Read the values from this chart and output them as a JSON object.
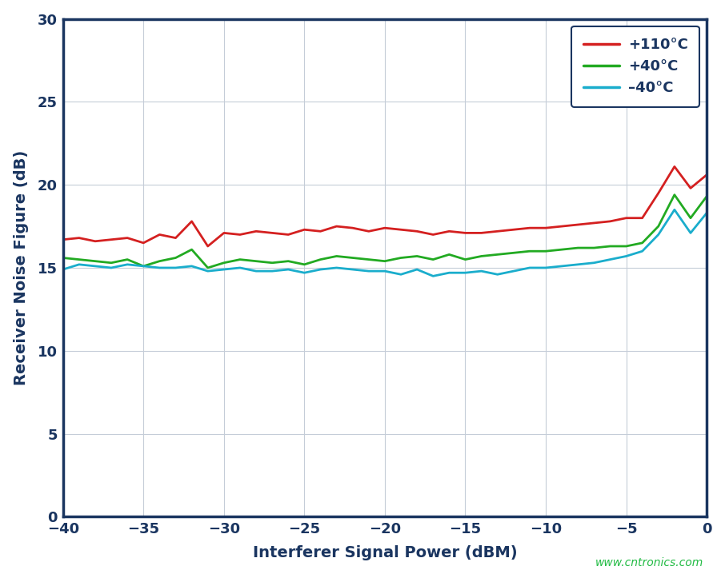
{
  "xlabel": "Interferer Signal Power (dBM)",
  "ylabel": "Receiver Noise Figure (dB)",
  "xlim": [
    -40,
    0
  ],
  "ylim": [
    0,
    30
  ],
  "xticks": [
    -40,
    -35,
    -30,
    -25,
    -20,
    -15,
    -10,
    -5,
    0
  ],
  "yticks": [
    0,
    5,
    10,
    15,
    20,
    25,
    30
  ],
  "background_color": "#ffffff",
  "plot_bg_color": "#ffffff",
  "grid_color": "#c5cdd8",
  "axis_color": "#1a3560",
  "label_color": "#1a3560",
  "tick_labelsize": 13,
  "axis_labelsize": 14,
  "watermark": "www.cntronics.com",
  "watermark_color": "#22bb44",
  "series": [
    {
      "label": "+110°C",
      "color": "#d42020",
      "linewidth": 2.0,
      "x": [
        -40,
        -39,
        -38,
        -37,
        -36,
        -35,
        -34,
        -33,
        -32,
        -31,
        -30,
        -29,
        -28,
        -27,
        -26,
        -25,
        -24,
        -23,
        -22,
        -21,
        -20,
        -19,
        -18,
        -17,
        -16,
        -15,
        -14,
        -13,
        -12,
        -11,
        -10,
        -9,
        -8,
        -7,
        -6,
        -5,
        -4,
        -3,
        -2,
        -1,
        0
      ],
      "y": [
        16.7,
        16.8,
        16.6,
        16.7,
        16.8,
        16.5,
        17.0,
        16.8,
        17.8,
        16.3,
        17.1,
        17.0,
        17.2,
        17.1,
        17.0,
        17.3,
        17.2,
        17.5,
        17.4,
        17.2,
        17.4,
        17.3,
        17.2,
        17.0,
        17.2,
        17.1,
        17.1,
        17.2,
        17.3,
        17.4,
        17.4,
        17.5,
        17.6,
        17.7,
        17.8,
        18.0,
        18.0,
        19.5,
        21.1,
        19.8,
        20.6
      ]
    },
    {
      "label": "+40°C",
      "color": "#22aa22",
      "linewidth": 2.0,
      "x": [
        -40,
        -39,
        -38,
        -37,
        -36,
        -35,
        -34,
        -33,
        -32,
        -31,
        -30,
        -29,
        -28,
        -27,
        -26,
        -25,
        -24,
        -23,
        -22,
        -21,
        -20,
        -19,
        -18,
        -17,
        -16,
        -15,
        -14,
        -13,
        -12,
        -11,
        -10,
        -9,
        -8,
        -7,
        -6,
        -5,
        -4,
        -3,
        -2,
        -1,
        0
      ],
      "y": [
        15.6,
        15.5,
        15.4,
        15.3,
        15.5,
        15.1,
        15.4,
        15.6,
        16.1,
        15.0,
        15.3,
        15.5,
        15.4,
        15.3,
        15.4,
        15.2,
        15.5,
        15.7,
        15.6,
        15.5,
        15.4,
        15.6,
        15.7,
        15.5,
        15.8,
        15.5,
        15.7,
        15.8,
        15.9,
        16.0,
        16.0,
        16.1,
        16.2,
        16.2,
        16.3,
        16.3,
        16.5,
        17.5,
        19.4,
        18.0,
        19.3
      ]
    },
    {
      "label": "–40°C",
      "color": "#1aadcc",
      "linewidth": 2.0,
      "x": [
        -40,
        -39,
        -38,
        -37,
        -36,
        -35,
        -34,
        -33,
        -32,
        -31,
        -30,
        -29,
        -28,
        -27,
        -26,
        -25,
        -24,
        -23,
        -22,
        -21,
        -20,
        -19,
        -18,
        -17,
        -16,
        -15,
        -14,
        -13,
        -12,
        -11,
        -10,
        -9,
        -8,
        -7,
        -6,
        -5,
        -4,
        -3,
        -2,
        -1,
        0
      ],
      "y": [
        14.9,
        15.2,
        15.1,
        15.0,
        15.2,
        15.1,
        15.0,
        15.0,
        15.1,
        14.8,
        14.9,
        15.0,
        14.8,
        14.8,
        14.9,
        14.7,
        14.9,
        15.0,
        14.9,
        14.8,
        14.8,
        14.6,
        14.9,
        14.5,
        14.7,
        14.7,
        14.8,
        14.6,
        14.8,
        15.0,
        15.0,
        15.1,
        15.2,
        15.3,
        15.5,
        15.7,
        16.0,
        17.0,
        18.5,
        17.1,
        18.3
      ]
    }
  ]
}
